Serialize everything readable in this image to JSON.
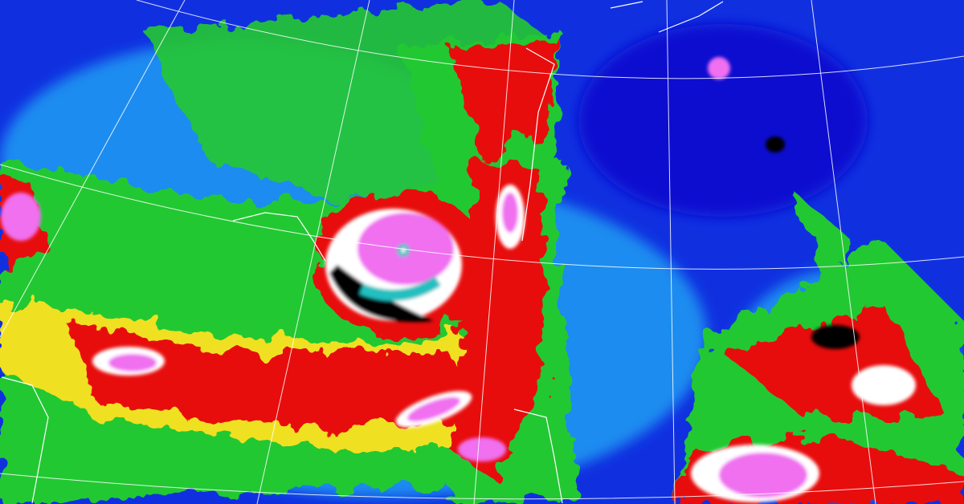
{
  "image": {
    "kind": "enhanced infrared satellite image",
    "colors": {
      "ocean_clear": "#1030e0",
      "deep_clear": "#0a10d0",
      "low_cloud": "#1e8cf0",
      "mid_cloud": "#22c830",
      "high_cloud_yellow": "#f0e020",
      "high_cloud_red": "#e81010",
      "very_cold_white": "#ffffff",
      "coldest_black": "#000000",
      "cyan_top": "#20c0c0",
      "overshooting_magenta": "#f070f0",
      "grid": "#ffffff",
      "coastline": "#ffffff"
    }
  }
}
